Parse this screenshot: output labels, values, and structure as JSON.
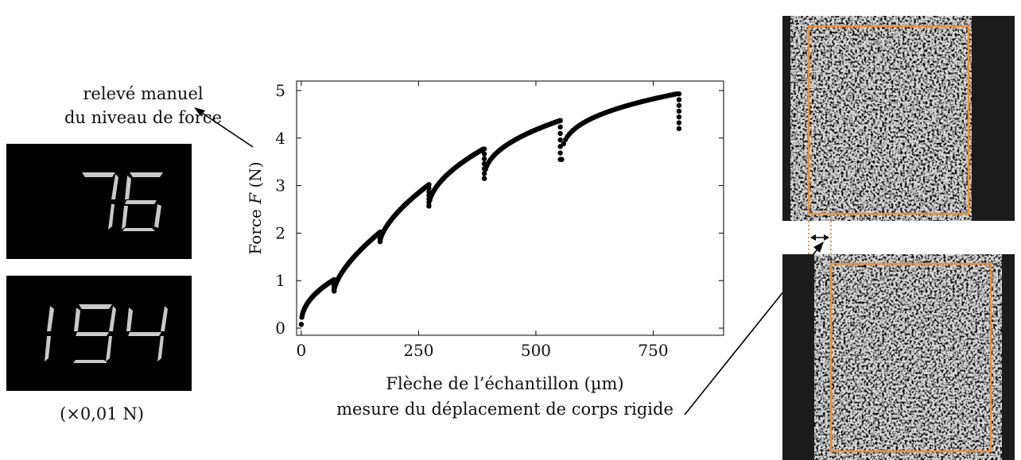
{
  "left_panel": {
    "caption_line1": "relevé manuel",
    "caption_line2": "du niveau de force",
    "displays": [
      {
        "value": "76"
      },
      {
        "value": "194"
      }
    ],
    "unit_note": "(×0,01 N)"
  },
  "bottom_note": "mesure du déplacement de corps rigide",
  "colors": {
    "roi_frame": "#e8913c",
    "display_segment": "#c9c9c9",
    "display_bg": "#000000"
  },
  "chart_data": {
    "type": "scatter",
    "title": "",
    "xlabel": "Flèche de l’échantillon (µm)",
    "ylabel_prefix": "Force ",
    "ylabel_var": "F",
    "ylabel_unit": "  (N)",
    "xlim": [
      -10,
      900
    ],
    "ylim": [
      -0.15,
      5.2
    ],
    "xticks": [
      0,
      250,
      500,
      750
    ],
    "yticks": [
      0,
      1,
      2,
      3,
      4,
      5
    ],
    "grid": false,
    "segments": [
      {
        "x_start": 0,
        "x_end": 70,
        "y_start": 0.08,
        "y_end": 1.02,
        "shape": 0.45
      },
      {
        "x_start": 70,
        "x_end": 168,
        "y_start": 0.78,
        "y_end": 2.02,
        "shape": 0.65
      },
      {
        "x_start": 168,
        "x_end": 272,
        "y_start": 1.82,
        "y_end": 3.02,
        "shape": 0.65
      },
      {
        "x_start": 272,
        "x_end": 388,
        "y_start": 2.57,
        "y_end": 3.77,
        "shape": 0.55
      },
      {
        "x_start": 390,
        "x_end": 552,
        "y_start": 3.15,
        "y_end": 4.37,
        "shape": 0.45
      },
      {
        "x_start": 555,
        "x_end": 800,
        "y_start": 3.55,
        "y_end": 4.93,
        "shape": 0.35
      }
    ],
    "drops": [
      {
        "x": 70,
        "y_from": 1.02,
        "y_to": 0.78
      },
      {
        "x": 168,
        "y_from": 2.02,
        "y_to": 1.82
      },
      {
        "x": 272,
        "y_from": 3.02,
        "y_to": 2.57
      },
      {
        "x": 390,
        "y_from": 3.77,
        "y_to": 3.15
      },
      {
        "x": 552,
        "y_from": 4.37,
        "y_to": 3.55
      },
      {
        "x": 805,
        "y_from": 4.93,
        "y_to": 4.2
      }
    ]
  }
}
